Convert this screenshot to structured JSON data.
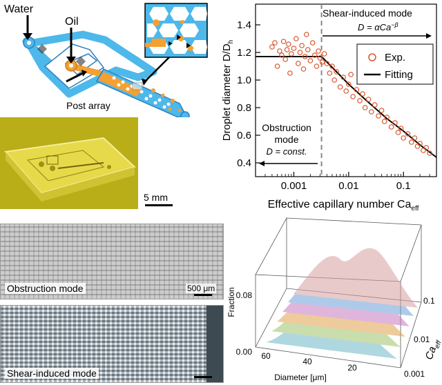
{
  "schematic": {
    "label_water": "Water",
    "label_oil": "Oil",
    "label_post_array": "Post array",
    "scale_bar": "5 mm"
  },
  "chart_data": {
    "type": "scatter",
    "xlabel": "Effective capillary number Ca",
    "xlabel_sub": "eff",
    "ylabel": "Droplet diameter D/D",
    "ylabel_sub": "h",
    "xscale": "log",
    "xlim": [
      0.0002,
      0.4
    ],
    "ylim": [
      0.3,
      1.55
    ],
    "xticks": [
      {
        "v": 0.001,
        "label": "0.001"
      },
      {
        "v": 0.01,
        "label": "0.01"
      },
      {
        "v": 0.1,
        "label": "0.1"
      }
    ],
    "yticks": [
      {
        "v": 0.4,
        "label": "0.4"
      },
      {
        "v": 0.6,
        "label": "0.6"
      },
      {
        "v": 0.8,
        "label": "0.8"
      },
      {
        "v": 1.0,
        "label": "1.0"
      },
      {
        "v": 1.2,
        "label": "1.2"
      },
      {
        "v": 1.4,
        "label": "1.4"
      }
    ],
    "transition_ca": 0.0032,
    "legend": {
      "exp": "Exp.",
      "fit": "Fitting",
      "position": "upper-right"
    },
    "annotations": {
      "shear_mode": "Shear-induced mode",
      "shear_formula": "D = αCa",
      "shear_formula_sup": "−β",
      "obstruction_mode_line1": "Obstruction",
      "obstruction_mode_line2": "mode",
      "obstruction_formula": "D = const."
    },
    "fit_plateau": 1.17,
    "fit_curve": [
      {
        "x": 0.0032,
        "y": 1.17
      },
      {
        "x": 0.006,
        "y": 1.06
      },
      {
        "x": 0.01,
        "y": 0.97
      },
      {
        "x": 0.02,
        "y": 0.86
      },
      {
        "x": 0.05,
        "y": 0.72
      },
      {
        "x": 0.1,
        "y": 0.63
      },
      {
        "x": 0.2,
        "y": 0.53
      },
      {
        "x": 0.4,
        "y": 0.44
      }
    ],
    "points": [
      {
        "x": 0.0004,
        "y": 1.24
      },
      {
        "x": 0.00045,
        "y": 1.27
      },
      {
        "x": 0.0005,
        "y": 1.1
      },
      {
        "x": 0.00055,
        "y": 1.21
      },
      {
        "x": 0.0006,
        "y": 1.18
      },
      {
        "x": 0.00065,
        "y": 1.28
      },
      {
        "x": 0.0007,
        "y": 1.15
      },
      {
        "x": 0.00075,
        "y": 1.22
      },
      {
        "x": 0.0008,
        "y": 1.26
      },
      {
        "x": 0.00085,
        "y": 1.05
      },
      {
        "x": 0.0009,
        "y": 1.19
      },
      {
        "x": 0.001,
        "y": 1.23
      },
      {
        "x": 0.0011,
        "y": 1.3
      },
      {
        "x": 0.0012,
        "y": 1.12
      },
      {
        "x": 0.0013,
        "y": 1.2
      },
      {
        "x": 0.0014,
        "y": 1.25
      },
      {
        "x": 0.0015,
        "y": 1.08
      },
      {
        "x": 0.0016,
        "y": 1.17
      },
      {
        "x": 0.0017,
        "y": 1.33
      },
      {
        "x": 0.0018,
        "y": 1.22
      },
      {
        "x": 0.002,
        "y": 1.14
      },
      {
        "x": 0.0022,
        "y": 1.27
      },
      {
        "x": 0.0024,
        "y": 1.18
      },
      {
        "x": 0.0026,
        "y": 1.1
      },
      {
        "x": 0.0028,
        "y": 1.21
      },
      {
        "x": 0.003,
        "y": 1.16
      },
      {
        "x": 0.0033,
        "y": 1.13
      },
      {
        "x": 0.0036,
        "y": 1.19
      },
      {
        "x": 0.004,
        "y": 1.12
      },
      {
        "x": 0.0045,
        "y": 1.05
      },
      {
        "x": 0.005,
        "y": 1.1
      },
      {
        "x": 0.0055,
        "y": 1.0
      },
      {
        "x": 0.006,
        "y": 1.06
      },
      {
        "x": 0.007,
        "y": 0.95
      },
      {
        "x": 0.008,
        "y": 1.02
      },
      {
        "x": 0.009,
        "y": 0.92
      },
      {
        "x": 0.01,
        "y": 0.97
      },
      {
        "x": 0.011,
        "y": 1.04
      },
      {
        "x": 0.012,
        "y": 0.88
      },
      {
        "x": 0.014,
        "y": 0.93
      },
      {
        "x": 0.016,
        "y": 0.85
      },
      {
        "x": 0.018,
        "y": 0.9
      },
      {
        "x": 0.02,
        "y": 0.8
      },
      {
        "x": 0.023,
        "y": 0.86
      },
      {
        "x": 0.026,
        "y": 0.77
      },
      {
        "x": 0.03,
        "y": 0.82
      },
      {
        "x": 0.035,
        "y": 0.74
      },
      {
        "x": 0.04,
        "y": 0.78
      },
      {
        "x": 0.045,
        "y": 0.7
      },
      {
        "x": 0.05,
        "y": 0.73
      },
      {
        "x": 0.06,
        "y": 0.66
      },
      {
        "x": 0.07,
        "y": 0.69
      },
      {
        "x": 0.08,
        "y": 0.62
      },
      {
        "x": 0.09,
        "y": 0.65
      },
      {
        "x": 0.1,
        "y": 0.58
      },
      {
        "x": 0.12,
        "y": 0.61
      },
      {
        "x": 0.14,
        "y": 0.55
      },
      {
        "x": 0.16,
        "y": 0.58
      },
      {
        "x": 0.18,
        "y": 0.52
      },
      {
        "x": 0.2,
        "y": 0.54
      },
      {
        "x": 0.23,
        "y": 0.49
      },
      {
        "x": 0.26,
        "y": 0.51
      },
      {
        "x": 0.3,
        "y": 0.47
      }
    ]
  },
  "micrographs": {
    "obstruction_label": "Obstruction mode",
    "shear_label": "Shear-induced mode",
    "scale_bar": "500 μm"
  },
  "distribution_3d": {
    "zlabel": "Fraction",
    "z_ticks": [
      "0.00",
      "0.08"
    ],
    "xlabel": "Diameter [μm]",
    "x_ticks": [
      "60",
      "40",
      "20"
    ],
    "ylabel": "Ca",
    "ylabel_sub": "eff",
    "y_ticks": [
      "0.1",
      "0.01",
      "0.001"
    ]
  },
  "colors": {
    "channel": "#4db8ea",
    "oil": "#f5a030",
    "points": "#d8542a",
    "fit": "#000000",
    "dash": "#888888"
  }
}
